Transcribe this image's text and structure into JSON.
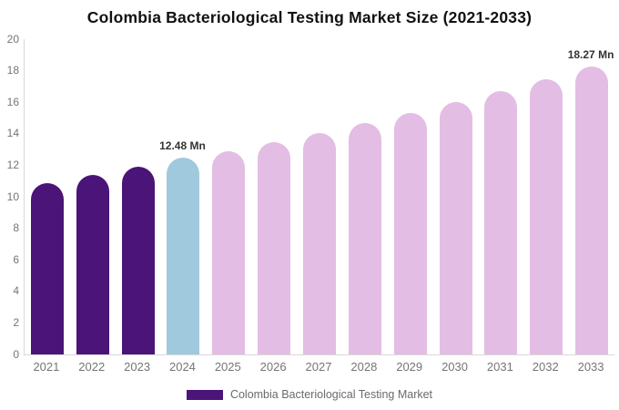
{
  "title": "Colombia Bacteriological Testing Market Size (2021-2033)",
  "chart_data": {
    "type": "bar",
    "title": "Colombia Bacteriological Testing Market Size (2021-2033)",
    "categories": [
      "2021",
      "2022",
      "2023",
      "2024",
      "2025",
      "2026",
      "2027",
      "2028",
      "2029",
      "2030",
      "2031",
      "2032",
      "2033"
    ],
    "values": [
      10.85,
      11.36,
      11.9,
      12.48,
      12.9,
      13.46,
      14.05,
      14.66,
      15.3,
      16.0,
      16.72,
      17.45,
      18.27
    ],
    "unit": "Mn",
    "bar_colors": [
      "#4B1478",
      "#4B1478",
      "#4B1478",
      "#A0C9DD",
      "#E3BDE4",
      "#E3BDE4",
      "#E3BDE4",
      "#E3BDE4",
      "#E3BDE4",
      "#E3BDE4",
      "#E3BDE4",
      "#E3BDE4",
      "#E3BDE4"
    ],
    "annotations": [
      {
        "index": 3,
        "text": "12.48 Mn"
      },
      {
        "index": 12,
        "text": "18.27 Mn"
      }
    ],
    "xlabel": "",
    "ylabel": "",
    "ylim": [
      0,
      20
    ],
    "yticks": [
      0,
      2,
      4,
      6,
      8,
      10,
      12,
      14,
      16,
      18,
      20
    ],
    "grid": false,
    "legend_position": "bottom",
    "legend": [
      {
        "label": "Colombia Bacteriological Testing Market",
        "color": "#4B1478"
      }
    ],
    "axis_line_color": "#d9d9d9",
    "tick_label_color": "#757575",
    "annotation_color": "#333333"
  }
}
